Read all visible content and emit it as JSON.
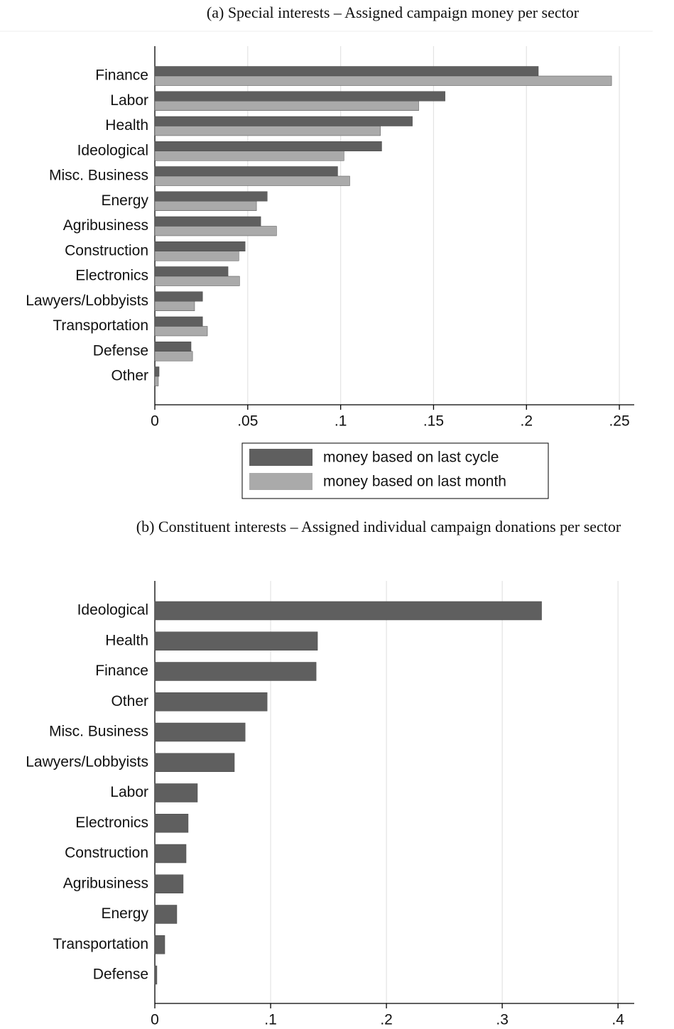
{
  "chart_data": [
    {
      "type": "bar",
      "orientation": "horizontal",
      "title": "(a) Special interests – Assigned campaign money per sector",
      "categories": [
        "Finance",
        "Labor",
        "Health",
        "Ideological",
        "Misc. Business",
        "Energy",
        "Agribusiness",
        "Construction",
        "Electronics",
        "Lawyers/Lobbyists",
        "Transportation",
        "Defense",
        "Other"
      ],
      "series": [
        {
          "name": "money based on last cycle",
          "color": "#5f5f5f",
          "values": [
            0.2064,
            0.1562,
            0.1386,
            0.1221,
            0.0984,
            0.0605,
            0.057,
            0.0486,
            0.0394,
            0.0257,
            0.0257,
            0.0195,
            0.0023
          ]
        },
        {
          "name": "money based on last month",
          "color": "#aaaaaa",
          "values": [
            0.2458,
            0.142,
            0.1214,
            0.1018,
            0.1049,
            0.0547,
            0.0655,
            0.0452,
            0.0456,
            0.0214,
            0.0283,
            0.0203,
            0.0019
          ]
        }
      ],
      "xlim": [
        0,
        0.258
      ],
      "xticks": [
        0,
        {
          "value": 0.05,
          "label": ".05"
        },
        {
          "value": 0.1,
          "label": ".1"
        },
        {
          "value": 0.15,
          "label": ".15"
        },
        {
          "value": 0.2,
          "label": ".2"
        },
        {
          "value": 0.25,
          "label": ".25"
        }
      ],
      "grid": true,
      "legend": "bottom"
    },
    {
      "type": "bar",
      "orientation": "horizontal",
      "title": "(b) Constituent interests – Assigned individual campaign donations per sector",
      "categories": [
        "Ideological",
        "Health",
        "Finance",
        "Other",
        "Misc. Business",
        "Lawyers/Lobbyists",
        "Labor",
        "Electronics",
        "Construction",
        "Agribusiness",
        "Energy",
        "Transportation",
        "Defense"
      ],
      "values": [
        0.334,
        0.1405,
        0.1393,
        0.097,
        0.078,
        0.0687,
        0.0368,
        0.0288,
        0.027,
        0.0245,
        0.019,
        0.0086,
        0.0018
      ],
      "color": "#5f5f5f",
      "xlim": [
        0,
        0.414
      ],
      "xticks": [
        0,
        {
          "value": 0.1,
          "label": ".1"
        },
        {
          "value": 0.2,
          "label": ".2"
        },
        {
          "value": 0.3,
          "label": ".3"
        },
        {
          "value": 0.4,
          "label": ".4"
        }
      ],
      "grid": true
    }
  ]
}
